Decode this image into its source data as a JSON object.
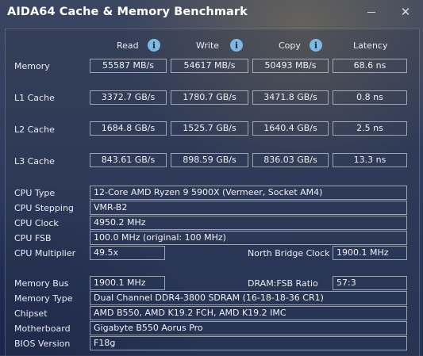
{
  "window": {
    "title": "AIDA64 Cache & Memory Benchmark",
    "minimize_icon": "minimize-icon",
    "close_icon": "close-icon",
    "close_glyph": "✕"
  },
  "columns": {
    "read": "Read",
    "write": "Write",
    "copy": "Copy",
    "latency": "Latency",
    "info_glyph": "i"
  },
  "bench": [
    {
      "label": "Memory",
      "read": "55587 MB/s",
      "write": "54617 MB/s",
      "copy": "50493 MB/s",
      "latency": "68.6 ns"
    },
    {
      "label": "L1 Cache",
      "read": "3372.7 GB/s",
      "write": "1780.7 GB/s",
      "copy": "3471.8 GB/s",
      "latency": "0.8 ns"
    },
    {
      "label": "L2 Cache",
      "read": "1684.8 GB/s",
      "write": "1525.7 GB/s",
      "copy": "1640.4 GB/s",
      "latency": "2.5 ns"
    },
    {
      "label": "L3 Cache",
      "read": "843.61 GB/s",
      "write": "898.59 GB/s",
      "copy": "836.03 GB/s",
      "latency": "13.3 ns"
    }
  ],
  "cpu": {
    "type_label": "CPU Type",
    "type": "12-Core AMD Ryzen 9 5900X  (Vermeer, Socket AM4)",
    "stepping_label": "CPU Stepping",
    "stepping": "VMR-B2",
    "clock_label": "CPU Clock",
    "clock": "4950.2 MHz",
    "fsb_label": "CPU FSB",
    "fsb": "100.0 MHz  (original: 100 MHz)",
    "multiplier_label": "CPU Multiplier",
    "multiplier": "49.5x",
    "nb_clock_label": "North Bridge Clock",
    "nb_clock": "1900.1 MHz"
  },
  "memory": {
    "bus_label": "Memory Bus",
    "bus": "1900.1 MHz",
    "ratio_label": "DRAM:FSB Ratio",
    "ratio": "57:3",
    "type_label": "Memory Type",
    "type": "Dual Channel DDR4-3800 SDRAM  (16-18-18-36 CR1)",
    "chipset_label": "Chipset",
    "chipset": "AMD B550, AMD K19.2 FCH, AMD K19.2 IMC",
    "motherboard_label": "Motherboard",
    "motherboard": "Gigabyte B550 Aorus Pro",
    "bios_label": "BIOS Version",
    "bios": "F18g"
  }
}
